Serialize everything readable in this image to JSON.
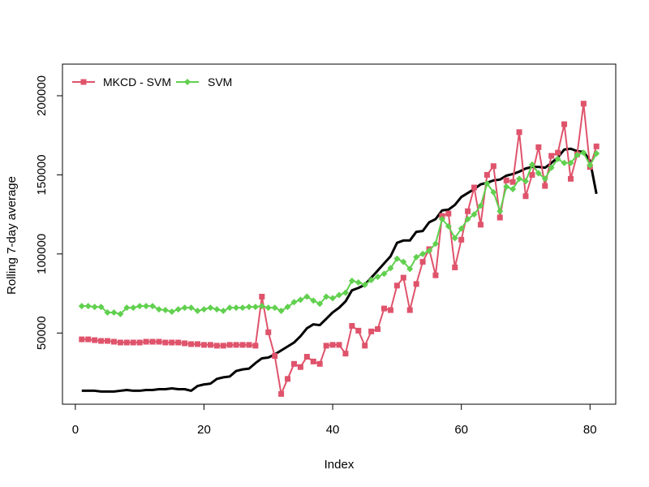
{
  "chart_data": {
    "type": "line",
    "title": "",
    "xlabel": "Index",
    "ylabel": "Rolling 7-day average",
    "xlim": [
      -2,
      84
    ],
    "ylim": [
      5000,
      220000
    ],
    "x_ticks": [
      0,
      20,
      40,
      60,
      80
    ],
    "y_ticks": [
      50000,
      100000,
      150000,
      200000
    ],
    "x_tick_labels": [
      "0",
      "20",
      "40",
      "60",
      "80"
    ],
    "y_tick_labels": [
      "50000",
      "100000",
      "150000",
      "200000"
    ],
    "grid": false,
    "legend_position": "top-left",
    "x": [
      1,
      2,
      3,
      4,
      5,
      6,
      7,
      8,
      9,
      10,
      11,
      12,
      13,
      14,
      15,
      16,
      17,
      18,
      19,
      20,
      21,
      22,
      23,
      24,
      25,
      26,
      27,
      28,
      29,
      30,
      31,
      32,
      33,
      34,
      35,
      36,
      37,
      38,
      39,
      40,
      41,
      42,
      43,
      44,
      45,
      46,
      47,
      48,
      49,
      50,
      51,
      52,
      53,
      54,
      55,
      56,
      57,
      58,
      59,
      60,
      61,
      62,
      63,
      64,
      65,
      66,
      67,
      68,
      69,
      70,
      71,
      72,
      73,
      74,
      75,
      76,
      77,
      78,
      79,
      80,
      81
    ],
    "series": [
      {
        "name": "",
        "color": "#000000",
        "marker": "none",
        "values": [
          13500,
          13500,
          13500,
          13000,
          13000,
          13000,
          13500,
          14000,
          13500,
          13500,
          14000,
          14000,
          14500,
          14500,
          15000,
          14500,
          14500,
          13500,
          16500,
          17500,
          18000,
          21000,
          22000,
          22500,
          26000,
          27000,
          27500,
          31000,
          34000,
          34500,
          36500,
          39000,
          41500,
          44000,
          48000,
          53000,
          55500,
          55000,
          59000,
          63000,
          66000,
          70000,
          77000,
          78500,
          80500,
          85000,
          89500,
          94000,
          98500,
          107000,
          108500,
          108500,
          114000,
          114500,
          120000,
          122000,
          127500,
          128000,
          131000,
          136000,
          138500,
          141000,
          144000,
          145000,
          146500,
          147000,
          149500,
          150500,
          152000,
          154000,
          155000,
          155000,
          154500,
          157500,
          161000,
          166000,
          166500,
          165000,
          164500,
          159000,
          138000
        ]
      },
      {
        "name": "MKCD - SVM",
        "color": "#DF536B",
        "marker": "square",
        "values": [
          46000,
          46000,
          45500,
          45000,
          45000,
          44500,
          44000,
          44000,
          44000,
          44000,
          44500,
          44500,
          44500,
          44000,
          44000,
          44000,
          43500,
          43000,
          43000,
          42500,
          42500,
          42000,
          42000,
          42500,
          42500,
          42500,
          42500,
          42000,
          73000,
          50500,
          35500,
          11500,
          21000,
          30500,
          28500,
          35000,
          32000,
          30500,
          42000,
          42500,
          42500,
          37000,
          54500,
          51500,
          42000,
          51000,
          52500,
          65500,
          64500,
          80000,
          85000,
          64500,
          81000,
          95000,
          103000,
          86500,
          124000,
          125500,
          91500,
          109000,
          127000,
          142000,
          118500,
          150000,
          155500,
          123000,
          146500,
          145500,
          177000,
          136500,
          150000,
          167500,
          143000,
          162000,
          164000,
          182000,
          147500,
          163000,
          195000,
          155000,
          168000
        ]
      },
      {
        "name": "SVM",
        "color": "#61D04F",
        "marker": "diamond",
        "values": [
          67000,
          67000,
          66500,
          66500,
          63000,
          63000,
          62000,
          66000,
          66000,
          67000,
          67000,
          67000,
          65000,
          64500,
          63500,
          65000,
          66000,
          66000,
          64000,
          65000,
          66000,
          65000,
          64000,
          66000,
          66000,
          66000,
          66500,
          66500,
          67000,
          66000,
          66000,
          64000,
          66500,
          69500,
          71000,
          73000,
          70500,
          68500,
          73000,
          72000,
          74000,
          75500,
          83000,
          82000,
          80500,
          83500,
          85500,
          87500,
          91000,
          97000,
          95000,
          90500,
          98000,
          100000,
          102000,
          106500,
          122000,
          117500,
          110000,
          116000,
          122000,
          125000,
          130500,
          144500,
          139000,
          127000,
          142500,
          141000,
          147500,
          146000,
          156500,
          151000,
          147500,
          154500,
          160000,
          157500,
          157500,
          162500,
          164000,
          156000,
          163500
        ]
      }
    ]
  }
}
